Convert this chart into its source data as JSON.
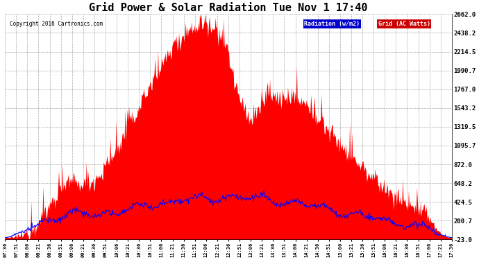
{
  "title": "Grid Power & Solar Radiation Tue Nov 1 17:40",
  "copyright": "Copyright 2016 Cartronics.com",
  "legend_labels": [
    "Radiation (w/m2)",
    "Grid (AC Watts)"
  ],
  "legend_colors": [
    "#0000ff",
    "#ff0000"
  ],
  "legend_bg_colors": [
    "#0000cc",
    "#cc0000"
  ],
  "y_ticks": [
    -23.0,
    200.7,
    424.5,
    648.2,
    872.0,
    1095.7,
    1319.5,
    1543.2,
    1767.0,
    1990.7,
    2214.5,
    2438.2,
    2662.0
  ],
  "y_min": -23.0,
  "y_max": 2662.0,
  "background_color": "#ffffff",
  "plot_bg_color": "#ffffff",
  "grid_color": "#aaaaaa",
  "title_fontsize": 11,
  "x_tick_labels": [
    "07:36",
    "07:51",
    "08:06",
    "08:21",
    "08:36",
    "08:51",
    "09:06",
    "09:21",
    "09:36",
    "09:51",
    "10:06",
    "10:21",
    "10:36",
    "10:51",
    "11:06",
    "11:21",
    "11:36",
    "11:51",
    "12:06",
    "12:21",
    "12:36",
    "12:51",
    "13:06",
    "13:21",
    "13:36",
    "13:51",
    "14:06",
    "14:21",
    "14:36",
    "14:51",
    "15:06",
    "15:21",
    "15:36",
    "15:51",
    "16:06",
    "16:21",
    "16:36",
    "16:51",
    "17:06",
    "17:21",
    "17:36"
  ]
}
